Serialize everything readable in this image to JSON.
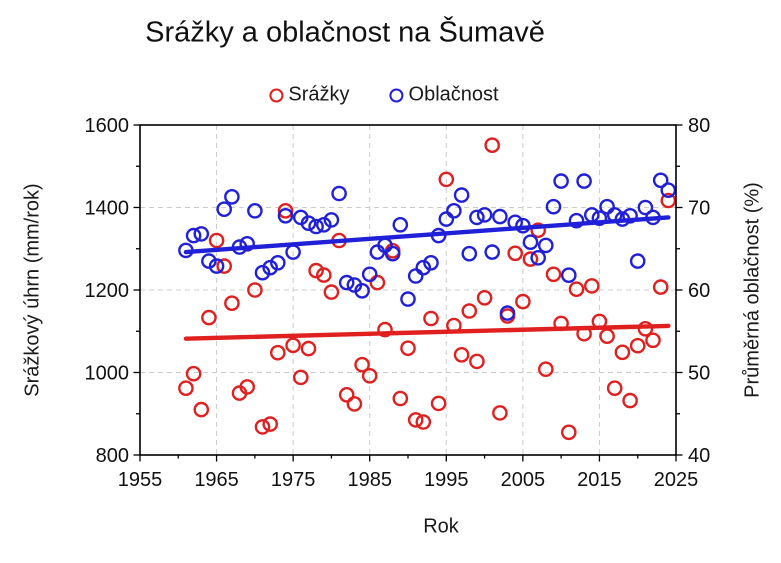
{
  "title": "Srážky a oblačnost na Šumavě",
  "legend": [
    {
      "label": "Srážky",
      "color": "#e01f1f"
    },
    {
      "label": "Oblačnost",
      "color": "#2020d8"
    }
  ],
  "chart_data": {
    "type": "scatter",
    "title": "Srážky a oblačnost na Šumavě",
    "xlabel": "Rok",
    "ylabel_left": "Srážkový úhrn (mm/rok)",
    "ylabel_right": "Průměrná oblačnost (%)",
    "xlim": [
      1955,
      2025
    ],
    "ylim_left": [
      800,
      1600
    ],
    "ylim_right": [
      40,
      80
    ],
    "x_ticks": [
      1955,
      1965,
      1975,
      1985,
      1995,
      2005,
      2015,
      2025
    ],
    "x_minor_step": 5,
    "y_ticks_left": [
      800,
      1000,
      1200,
      1400,
      1600
    ],
    "y_left_minor_step": 100,
    "y_ticks_right": [
      40,
      50,
      60,
      70,
      80
    ],
    "y_right_minor_step": 5,
    "grid": "dashed",
    "grid_color": "#cccccc",
    "years": [
      1961,
      1962,
      1963,
      1964,
      1965,
      1966,
      1967,
      1968,
      1969,
      1970,
      1971,
      1972,
      1973,
      1974,
      1975,
      1976,
      1977,
      1978,
      1979,
      1980,
      1981,
      1982,
      1983,
      1984,
      1985,
      1986,
      1987,
      1988,
      1989,
      1990,
      1991,
      1992,
      1993,
      1994,
      1995,
      1996,
      1997,
      1998,
      1999,
      2000,
      2001,
      2002,
      2003,
      2004,
      2005,
      2006,
      2007,
      2008,
      2009,
      2010,
      2011,
      2012,
      2013,
      2014,
      2015,
      2016,
      2017,
      2018,
      2019,
      2020,
      2021,
      2022,
      2023,
      2024
    ],
    "series": [
      {
        "name": "Srážky",
        "axis": "left",
        "color": "#e01f1f",
        "values": [
          962,
          997,
          910,
          1133,
          1320,
          1258,
          1168,
          950,
          965,
          1200,
          868,
          875,
          1048,
          1392,
          1066,
          988,
          1058,
          1247,
          1236,
          1195,
          1320,
          946,
          924,
          1019,
          992,
          1218,
          1104,
          1295,
          937,
          1059,
          885,
          880,
          1131,
          925,
          1468,
          1114,
          1043,
          1149,
          1027,
          1181,
          1551,
          902,
          1137,
          1289,
          1172,
          1275,
          1345,
          1008,
          1238,
          1119,
          855,
          1202,
          1094,
          1210,
          1124,
          1088,
          962,
          1049,
          932,
          1065,
          1106,
          1078,
          1207,
          1417
        ],
        "trend": {
          "x": [
            1961,
            2024
          ],
          "y": [
            1082,
            1113
          ]
        }
      },
      {
        "name": "Oblačnost",
        "axis": "right",
        "color": "#2020d8",
        "values": [
          64.8,
          66.6,
          66.8,
          63.5,
          62.9,
          69.8,
          71.3,
          65.2,
          65.6,
          69.6,
          62.1,
          62.7,
          63.3,
          69.0,
          64.6,
          68.8,
          68.1,
          67.7,
          67.9,
          68.5,
          71.7,
          60.9,
          60.6,
          59.9,
          61.9,
          64.6,
          65.4,
          64.4,
          67.9,
          58.9,
          61.7,
          62.7,
          63.3,
          66.6,
          68.6,
          69.6,
          71.5,
          64.4,
          68.8,
          69.1,
          64.6,
          68.9,
          57.2,
          68.2,
          67.8,
          65.8,
          63.9,
          65.4,
          70.1,
          73.2,
          61.8,
          68.4,
          73.2,
          69.1,
          68.7,
          70.1,
          69.1,
          68.6,
          69.0,
          63.5,
          70.0,
          68.8,
          73.3,
          72.1
        ],
        "trend": {
          "x": [
            1961,
            2024
          ],
          "y": [
            64.6,
            68.8
          ]
        }
      }
    ]
  }
}
